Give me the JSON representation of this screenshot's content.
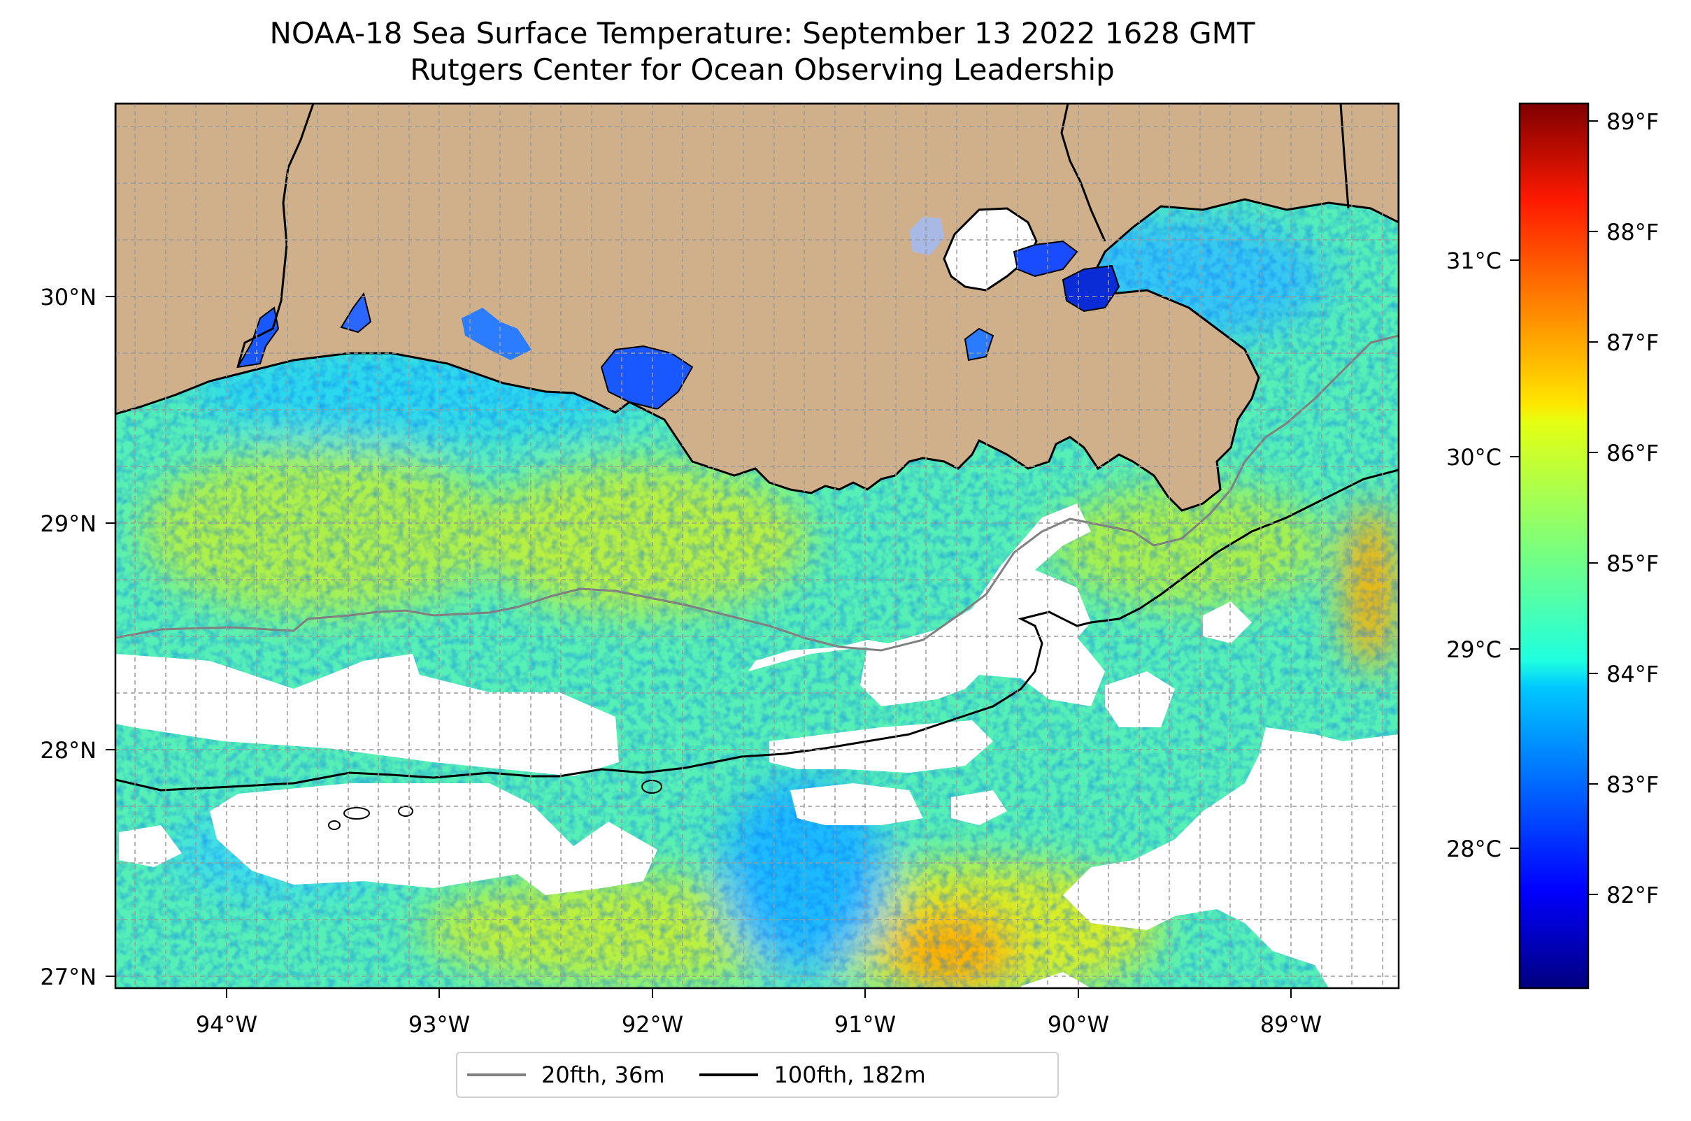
{
  "title": {
    "line1": "NOAA-18 Sea Surface Temperature: September 13 2022 1628 GMT",
    "line2": "Rutgers Center for Ocean Observing Leadership"
  },
  "map": {
    "lon_range": [
      -94.55,
      -88.2
    ],
    "lat_range": [
      26.92,
      30.82
    ],
    "lon_ticks": [
      {
        "value": -94,
        "label": "94°W"
      },
      {
        "value": -93,
        "label": "93°W"
      },
      {
        "value": -92,
        "label": "92°W"
      },
      {
        "value": -91,
        "label": "91°W"
      },
      {
        "value": -90,
        "label": "90°W"
      },
      {
        "value": -89,
        "label": "89°W"
      }
    ],
    "lat_ticks": [
      {
        "value": 27,
        "label": "27°N"
      },
      {
        "value": 28,
        "label": "28°N"
      },
      {
        "value": 29,
        "label": "29°N"
      },
      {
        "value": 30,
        "label": "30°N"
      }
    ],
    "gridlines": true,
    "colors": {
      "land": "#cfb08a",
      "cloud": "#ffffff",
      "coast": "#000000",
      "isobath_20fth": "#808080",
      "isobath_100fth": "#000000",
      "lake": "#a9b9e6"
    }
  },
  "colorbar": {
    "colormap": "jet",
    "fahrenheit_range": [
      81.2,
      89.2
    ],
    "fahrenheit_ticks": [
      {
        "value": 82,
        "label": "82°F"
      },
      {
        "value": 83,
        "label": "83°F"
      },
      {
        "value": 84,
        "label": "84°F"
      },
      {
        "value": 85,
        "label": "85°F"
      },
      {
        "value": 86,
        "label": "86°F"
      },
      {
        "value": 87,
        "label": "87°F"
      },
      {
        "value": 88,
        "label": "88°F"
      },
      {
        "value": 89,
        "label": "89°F"
      }
    ],
    "celsius_ticks": [
      {
        "value": 28,
        "label": "28°C"
      },
      {
        "value": 29,
        "label": "29°C"
      },
      {
        "value": 30,
        "label": "30°C"
      },
      {
        "value": 31,
        "label": "31°C"
      }
    ]
  },
  "legend": {
    "entries": [
      {
        "label": "20fth, 36m",
        "color": "#808080"
      },
      {
        "label": "100fth, 182m",
        "color": "#000000"
      }
    ]
  }
}
